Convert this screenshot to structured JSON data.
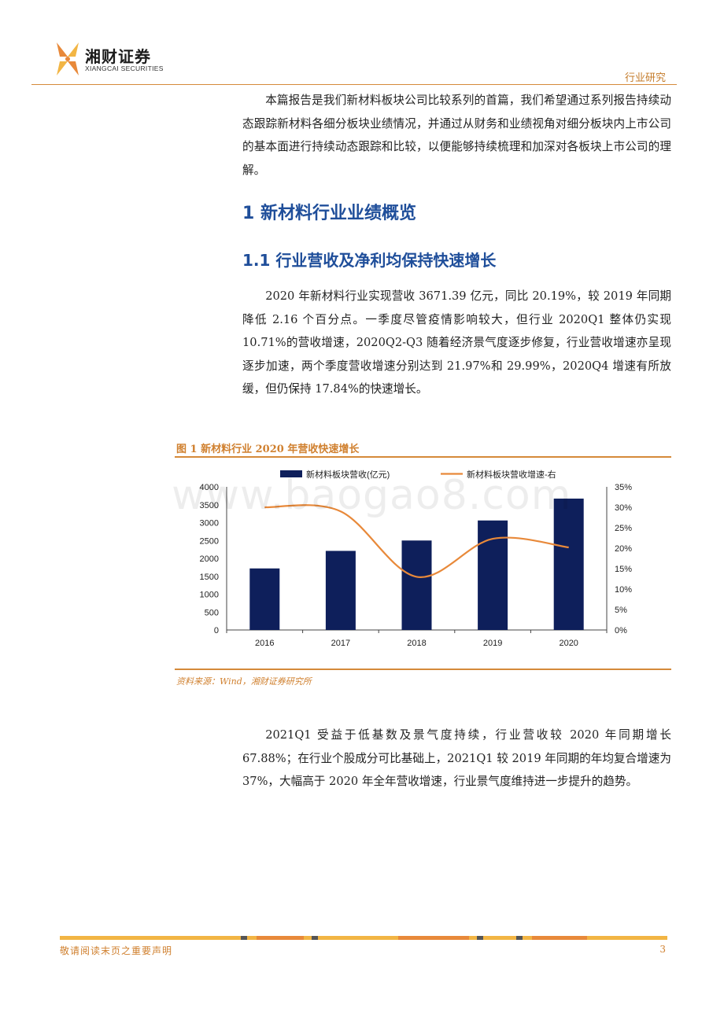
{
  "header": {
    "logo_cn": "湘财证券",
    "logo_en": "XIANGCAI SECURITIES",
    "section_tag": "行业研究"
  },
  "intro_paragraph": "本篇报告是我们新材料板块公司比较系列的首篇，我们希望通过系列报告持续动态跟踪新材料各细分板块业绩情况，并通过从财务和业绩视角对细分板块内上市公司的基本面进行持续动态跟踪和比较，以便能够持续梳理和加深对各板块上市公司的理解。",
  "heading1": "1 新材料行业业绩概览",
  "heading2": "1.1 行业营收及净利均保持快速增长",
  "paragraph2": "2020 年新材料行业实现营收 3671.39 亿元，同比 20.19%，较 2019 年同期降低 2.16 个百分点。一季度尽管疫情影响较大，但行业 2020Q1 整体仍实现 10.71%的营收增速，2020Q2-Q3 随着经济景气度逐步修复，行业营收增速亦呈现逐步加速，两个季度营收增速分别达到 21.97%和 29.99%，2020Q4 增速有所放缓，但仍保持 17.84%的快速增长。",
  "figure": {
    "title": "图 1  新材料行业 2020 年营收快速增长",
    "source": "资料来源：Wind，湘财证券研究所"
  },
  "watermark": "www.baogao8.com",
  "chart_data": {
    "type": "bar",
    "categories": [
      "2016",
      "2017",
      "2018",
      "2019",
      "2020"
    ],
    "series": [
      {
        "name": "新材料板块营收(亿元)",
        "type": "bar",
        "axis": "left",
        "color": "#0e1f5b",
        "values": [
          1720,
          2210,
          2500,
          3060,
          3671.39
        ]
      },
      {
        "name": "新材料板块营收增速-右",
        "type": "line",
        "axis": "right",
        "color": "#e8893a",
        "values": [
          30,
          29,
          13,
          22.3,
          20.19
        ]
      }
    ],
    "y_left": {
      "range": [
        0,
        4000
      ],
      "ticks": [
        "0",
        "500",
        "1000",
        "1500",
        "2000",
        "2500",
        "3000",
        "3500",
        "4000"
      ]
    },
    "y_right": {
      "range": [
        0,
        35
      ],
      "ticks": [
        "0%",
        "5%",
        "10%",
        "15%",
        "20%",
        "25%",
        "30%",
        "35%"
      ]
    },
    "legend_position": "top",
    "grid": true
  },
  "paragraph3": "2021Q1 受益于低基数及景气度持续，行业营收较 2020 年同期增长 67.88%；在行业个股成分可比基础上，2021Q1 较 2019 年同期的年均复合增速为 37%，大幅高于 2020 年全年营收增速，行业景气度维持进一步提升的趋势。",
  "footer": {
    "disclaimer": "敬请阅读末页之重要声明",
    "page_number": "3"
  }
}
